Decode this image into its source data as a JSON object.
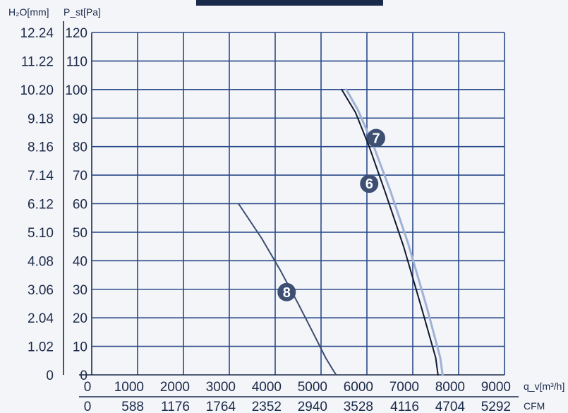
{
  "chart_data": {
    "type": "line",
    "title": "",
    "xlabel": "q_v[m³/h]",
    "x2label": "CFM",
    "ylabel": "P_st[Pa]",
    "y2label": "H₂O[mm]",
    "xlim": [
      0,
      9000
    ],
    "ylim": [
      0,
      120
    ],
    "grid": true,
    "x_ticks": [
      "0",
      "1000",
      "2000",
      "3000",
      "4000",
      "5000",
      "6000",
      "7000",
      "8000",
      "9000"
    ],
    "x2_ticks": [
      "0",
      "588",
      "1176",
      "1764",
      "2352",
      "2940",
      "3528",
      "4116",
      "4704",
      "5292"
    ],
    "y_ticks": [
      "0",
      "10",
      "20",
      "30",
      "40",
      "50",
      "60",
      "70",
      "80",
      "90",
      "100",
      "110",
      "120"
    ],
    "y2_ticks": [
      "0",
      "1.02",
      "2.04",
      "3.06",
      "4.08",
      "5.10",
      "6.12",
      "7.14",
      "8.16",
      "9.18",
      "10.20",
      "11.22",
      "12.24"
    ],
    "series": [
      {
        "name": "8",
        "color": "#3a4c70",
        "label_at": [
          4250,
          29
        ],
        "x": [
          3200,
          3700,
          4100,
          4500,
          4850,
          5100,
          5250,
          5330
        ],
        "y": [
          60,
          48,
          37,
          25,
          14,
          6,
          2,
          0
        ]
      },
      {
        "name": "7",
        "color": "#9fb1d6",
        "label_at": [
          6200,
          83
        ],
        "x": [
          5550,
          5800,
          6150,
          6500,
          6900,
          7300,
          7600,
          7650
        ],
        "y": [
          100,
          93,
          80,
          65,
          46,
          24,
          6,
          0
        ]
      },
      {
        "name": "6",
        "color": "#111a30",
        "label_at": [
          6050,
          67
        ],
        "x": [
          5450,
          5750,
          6050,
          6400,
          6800,
          7200,
          7500,
          7550
        ],
        "y": [
          100,
          92,
          80,
          64,
          45,
          23,
          6,
          0
        ]
      }
    ]
  }
}
